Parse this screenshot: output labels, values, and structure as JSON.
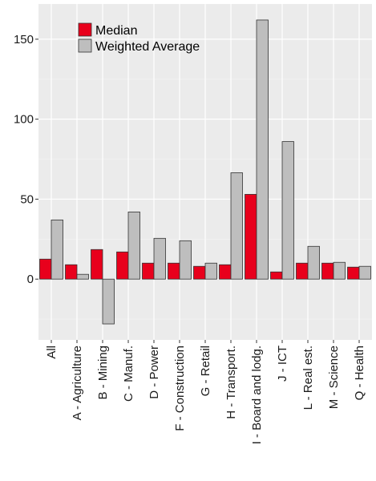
{
  "chart_data": {
    "type": "bar",
    "categories": [
      "All",
      "A - Agriculture",
      "B - Mining",
      "C - Manuf.",
      "D - Power",
      "F - Construction",
      "G - Retail",
      "H - Transport.",
      "I - Board and lodg.",
      "J - ICT",
      "L - Real est.",
      "M - Science",
      "Q - Health"
    ],
    "series": [
      {
        "name": "Median",
        "values": [
          12.5,
          9,
          18.5,
          17,
          10,
          10,
          8,
          9,
          53,
          4.5,
          10,
          10,
          7.5
        ],
        "color": "#e8001c"
      },
      {
        "name": "Weighted Average",
        "values": [
          37,
          3,
          -28,
          42,
          25.5,
          24,
          10,
          66.5,
          162,
          86,
          20.5,
          10.5,
          8
        ],
        "color": "#bebebe"
      }
    ],
    "ylim": [
      -38,
      172
    ],
    "yticks": [
      0,
      50,
      100,
      150
    ],
    "grid": true,
    "legend_position": "top-left"
  }
}
